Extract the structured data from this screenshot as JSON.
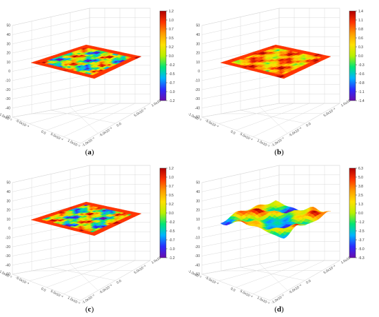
{
  "chart_data": [
    {
      "type": "surface3d",
      "panel_label": "(a)",
      "z_ticks": [
        "50",
        "40",
        "30",
        "20",
        "10",
        "0",
        "-10",
        "-20",
        "-30",
        "-40",
        "-50"
      ],
      "x_ticks": [
        "-1.0x10⁻²",
        "-5.0x10⁻³",
        "0.0",
        "5.0x10⁻³",
        "1.0x10⁻²"
      ],
      "y_ticks": [
        "-1.0x10⁻²",
        "-5.0x10⁻³",
        "0.0",
        "5.0x10⁻³",
        "1.0x10⁻²"
      ],
      "zlim": [
        -50,
        50
      ],
      "colorbar_ticks": [
        "1.2",
        "1.0",
        "0.7",
        "0.5",
        "0.2",
        "0.0",
        "-0.2",
        "-0.5",
        "-0.7",
        "-1.0",
        "-1.2"
      ],
      "colorbar_range": [
        -1.2,
        1.2
      ],
      "surface_style": "flat"
    },
    {
      "type": "surface3d",
      "panel_label": "(b)",
      "z_ticks": [
        "50",
        "40",
        "30",
        "20",
        "10",
        "0",
        "-10",
        "-20",
        "-30",
        "-40",
        "-50"
      ],
      "x_ticks": [
        "-1.0x10⁻²",
        "-5.0x10⁻³",
        "0.0",
        "5.0x10⁻³",
        "1.0x10⁻²"
      ],
      "y_ticks": [
        "-1.0x10⁻²",
        "-5.0x10⁻³",
        "0.0",
        "5.0x10⁻³",
        "1.0x10⁻²"
      ],
      "zlim": [
        -50,
        50
      ],
      "colorbar_ticks": [
        "1.4",
        "1.1",
        "0.8",
        "0.6",
        "0.3",
        "0.0",
        "-0.3",
        "-0.6",
        "-0.8",
        "-1.1",
        "-1.4"
      ],
      "colorbar_range": [
        -1.4,
        1.4
      ],
      "surface_style": "flat-red"
    },
    {
      "type": "surface3d",
      "panel_label": "(c)",
      "z_ticks": [
        "50",
        "40",
        "30",
        "20",
        "10",
        "0",
        "-10",
        "-20",
        "-30",
        "-40",
        "-50"
      ],
      "x_ticks": [
        "-1.0x10⁻²",
        "-5.0x10⁻³",
        "0.0",
        "5.0x10⁻³",
        "1.0x10⁻²"
      ],
      "y_ticks": [
        "-1.0x10⁻²",
        "-5.0x10⁻³",
        "0.0",
        "5.0x10⁻³",
        "1.0x10⁻²"
      ],
      "zlim": [
        -50,
        50
      ],
      "colorbar_ticks": [
        "1.2",
        "1.0",
        "0.7",
        "0.5",
        "0.2",
        "0.0",
        "-0.2",
        "-0.5",
        "-0.7",
        "-1.0",
        "-1.2"
      ],
      "colorbar_range": [
        -1.2,
        1.2
      ],
      "surface_style": "flat"
    },
    {
      "type": "surface3d",
      "panel_label": "(d)",
      "z_ticks": [
        "50",
        "40",
        "30",
        "20",
        "10",
        "0",
        "-10",
        "-20",
        "-30",
        "-40",
        "-50"
      ],
      "x_ticks": [
        "-1.0x10⁻²",
        "-5.0x10⁻³",
        "0.0",
        "5.0x10⁻³",
        "1.0x10⁻²"
      ],
      "y_ticks": [
        "-1.0x10⁻²",
        "-5.0x10⁻³",
        "0.0",
        "5.0x10⁻³",
        "1.0x10⁻²"
      ],
      "zlim": [
        -50,
        50
      ],
      "colorbar_ticks": [
        "6.3",
        "5.0",
        "3.8",
        "2.5",
        "1.3",
        "0.0",
        "-1.2",
        "-2.5",
        "-3.7",
        "-5.0",
        "-6.3"
      ],
      "colorbar_range": [
        -6.3,
        6.3
      ],
      "surface_style": "rough"
    }
  ],
  "colormap": [
    "#6a0dad",
    "#2b2bff",
    "#00b4ff",
    "#00e676",
    "#b8f000",
    "#ffe000",
    "#ff9a00",
    "#ff3300",
    "#b00000"
  ],
  "grid_color": "#d9d9d9"
}
